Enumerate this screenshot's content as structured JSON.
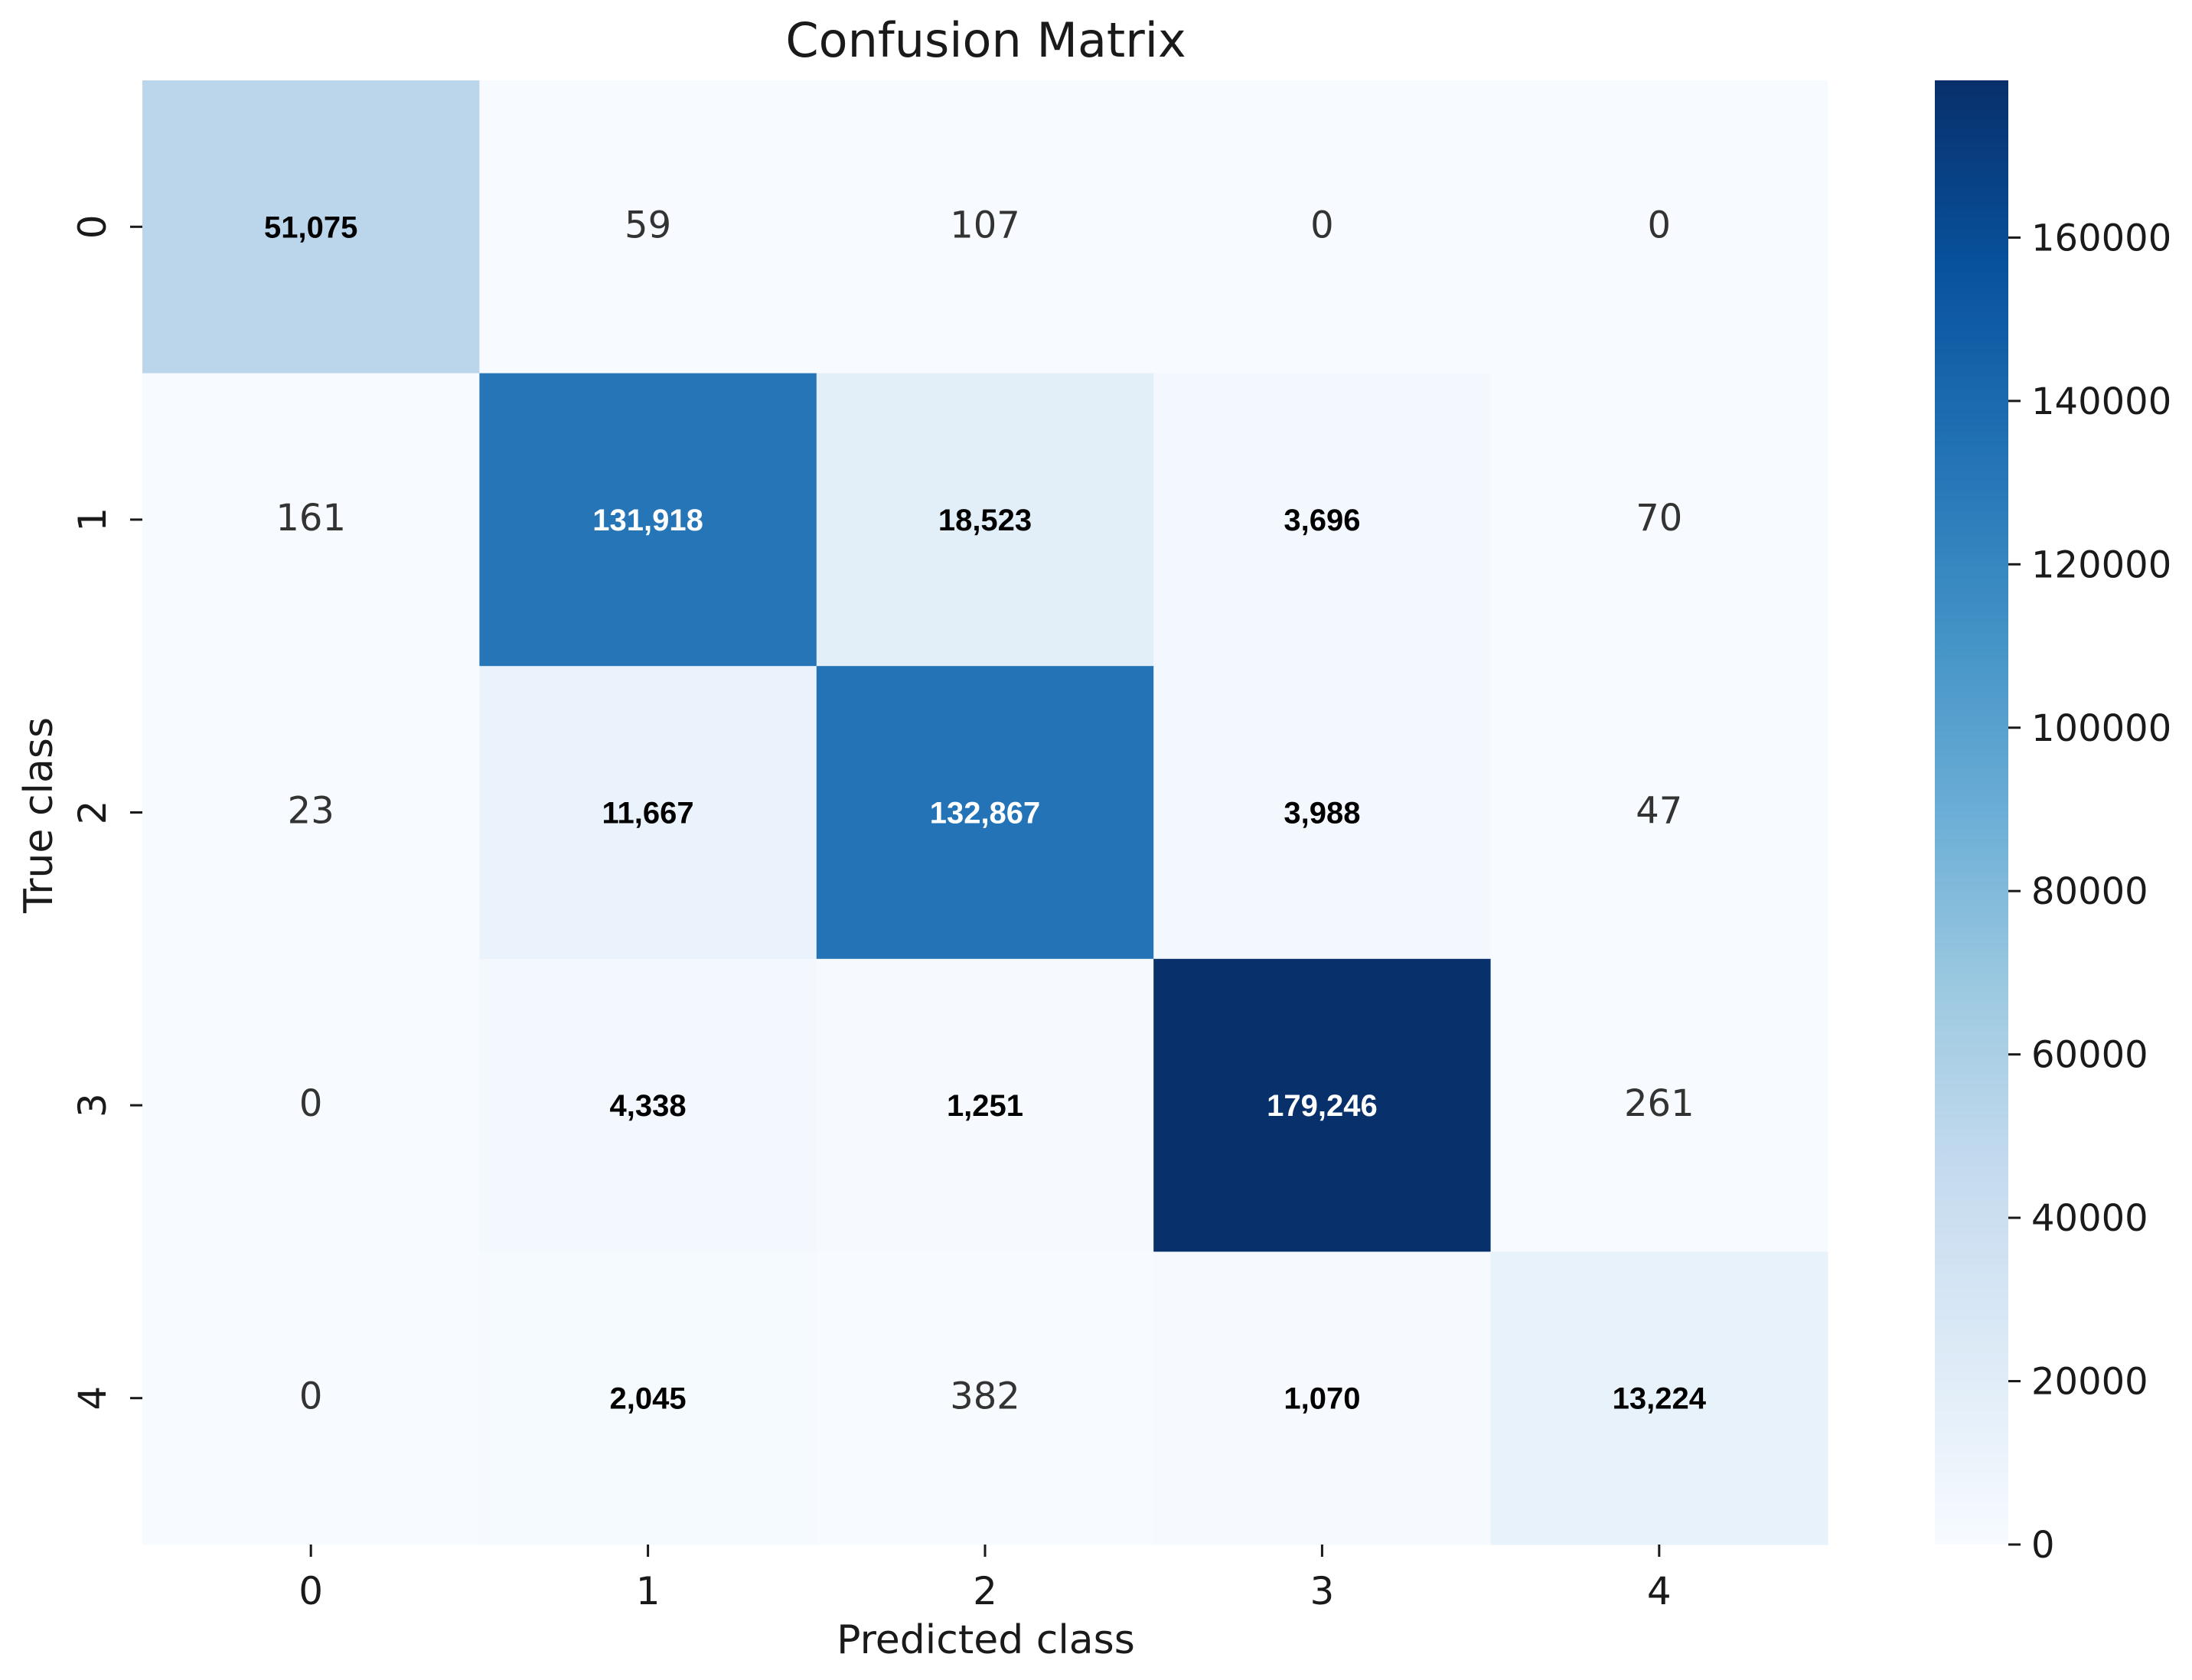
{
  "chart_data": {
    "type": "heatmap",
    "title": "Confusion Matrix",
    "xlabel": "Predicted class",
    "ylabel": "True class",
    "x_categories": [
      "0",
      "1",
      "2",
      "3",
      "4"
    ],
    "y_categories": [
      "0",
      "1",
      "2",
      "3",
      "4"
    ],
    "values": [
      [
        51075,
        59,
        107,
        0,
        0
      ],
      [
        161,
        131918,
        18523,
        3696,
        70
      ],
      [
        23,
        11667,
        132867,
        3988,
        47
      ],
      [
        0,
        4338,
        1251,
        179246,
        261
      ],
      [
        0,
        2045,
        382,
        1070,
        13224
      ]
    ],
    "cell_labels": [
      [
        "51,075",
        "59",
        "107",
        "0",
        "0"
      ],
      [
        "161",
        "131,918",
        "18,523",
        "3,696",
        "70"
      ],
      [
        "23",
        "11,667",
        "132,867",
        "3,988",
        "47"
      ],
      [
        "0",
        "4,338",
        "1,251",
        "179,246",
        "261"
      ],
      [
        "0",
        "2,045",
        "382",
        "1,070",
        "13,224"
      ]
    ],
    "colormap": "Blues",
    "color_range": [
      0,
      179246
    ],
    "colorbar_ticks": [
      0,
      20000,
      40000,
      60000,
      80000,
      100000,
      120000,
      140000,
      160000
    ],
    "colorbar_tick_labels": [
      "0",
      "20000",
      "40000",
      "60000",
      "80000",
      "100000",
      "120000",
      "140000",
      "160000"
    ],
    "colors": {
      "low": "#f7fbff",
      "high": "#08306b",
      "text_dark": "#000000",
      "text_light": "#ffffff"
    }
  }
}
